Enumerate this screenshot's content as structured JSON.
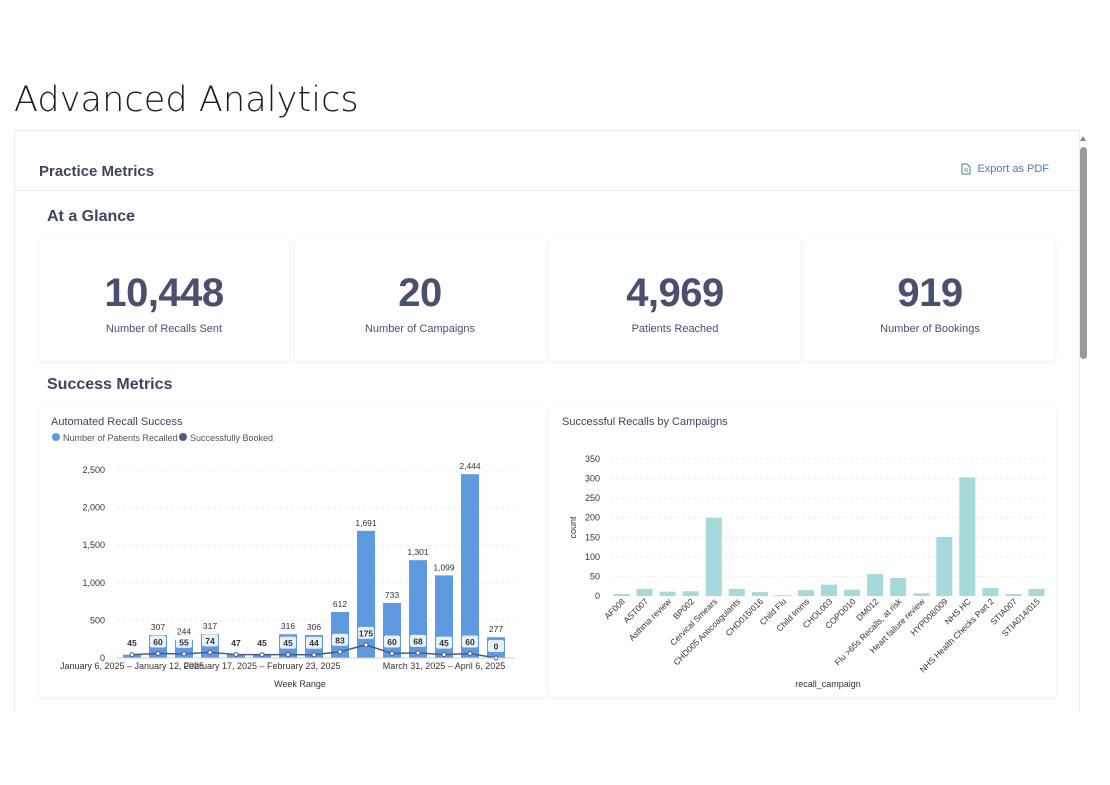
{
  "page": {
    "title": "Advanced Analytics"
  },
  "panel": {
    "title": "Practice Metrics",
    "export_label": "Export as PDF"
  },
  "sections": {
    "glance": "At a Glance",
    "success": "Success Metrics"
  },
  "kpis": [
    {
      "value": "10,448",
      "label": "Number of Recalls Sent"
    },
    {
      "value": "20",
      "label": "Number of Campaigns"
    },
    {
      "value": "4,969",
      "label": "Patients Reached"
    },
    {
      "value": "919",
      "label": "Number of Bookings"
    }
  ],
  "colors": {
    "bar": "#5f9ae0",
    "line": "#4f5a86",
    "cyan": "#a6d9da",
    "text": "#3d4460"
  },
  "chart_data": [
    {
      "type": "bar",
      "title": "Automated Recall Success",
      "legend": [
        "Number of Patients Recalled",
        "Successfully Booked"
      ],
      "xlabel": "Week Range",
      "ylabel": "",
      "ylim": [
        0,
        2500
      ],
      "yticks": [
        0,
        500,
        1000,
        1500,
        2000,
        2500
      ],
      "ytick_labels": [
        "0",
        "500",
        "1,000",
        "1,500",
        "2,000",
        "2,500"
      ],
      "xtick_labels": [
        "January 6, 2025 – January 12, 2025",
        "February 17, 2025 – February 23, 2025",
        "March 31, 2025 – April 6, 2025"
      ],
      "series": [
        {
          "name": "Number of Patients Recalled",
          "kind": "bar",
          "values": [
            45,
            307,
            244,
            317,
            47,
            45,
            316,
            306,
            612,
            1691,
            733,
            1301,
            1099,
            2444,
            277
          ],
          "labels": [
            "",
            "307",
            "244",
            "317",
            "",
            "",
            "316",
            "306",
            "612",
            "1,691",
            "733",
            "1,301",
            "1,099",
            "2,444",
            "277"
          ]
        },
        {
          "name": "Successfully Booked",
          "kind": "line",
          "values": [
            45,
            60,
            55,
            74,
            47,
            45,
            45,
            44,
            83,
            175,
            60,
            68,
            45,
            60,
            0
          ],
          "labels": [
            "45",
            "60",
            "55",
            "74",
            "47",
            "45",
            "45",
            "44",
            "83",
            "175",
            "60",
            "68",
            "45",
            "60",
            "0"
          ]
        }
      ]
    },
    {
      "type": "bar",
      "title": "Successful Recalls by Campaigns",
      "xlabel": "recall_campaign",
      "ylabel": "count",
      "ylim": [
        0,
        350
      ],
      "yticks": [
        0,
        50,
        100,
        150,
        200,
        250,
        300,
        350
      ],
      "categories": [
        "AF008",
        "AST007",
        "Asthma review",
        "BP002",
        "Cervical Smears",
        "CHD005 Anticoagulants",
        "CHD015/016",
        "Child Flu",
        "Child Imms",
        "CHOL003",
        "COPD010",
        "DM012",
        "Flu >65s Recalls, at risk",
        "Heart failure review",
        "HYP008/009",
        "NHS HC",
        "NHS Health Checks Part 2",
        "STIA007",
        "STIA014/015"
      ],
      "values": [
        5,
        18,
        11,
        12,
        200,
        18,
        10,
        2,
        15,
        29,
        16,
        56,
        46,
        7,
        151,
        303,
        20,
        5,
        18
      ]
    }
  ]
}
